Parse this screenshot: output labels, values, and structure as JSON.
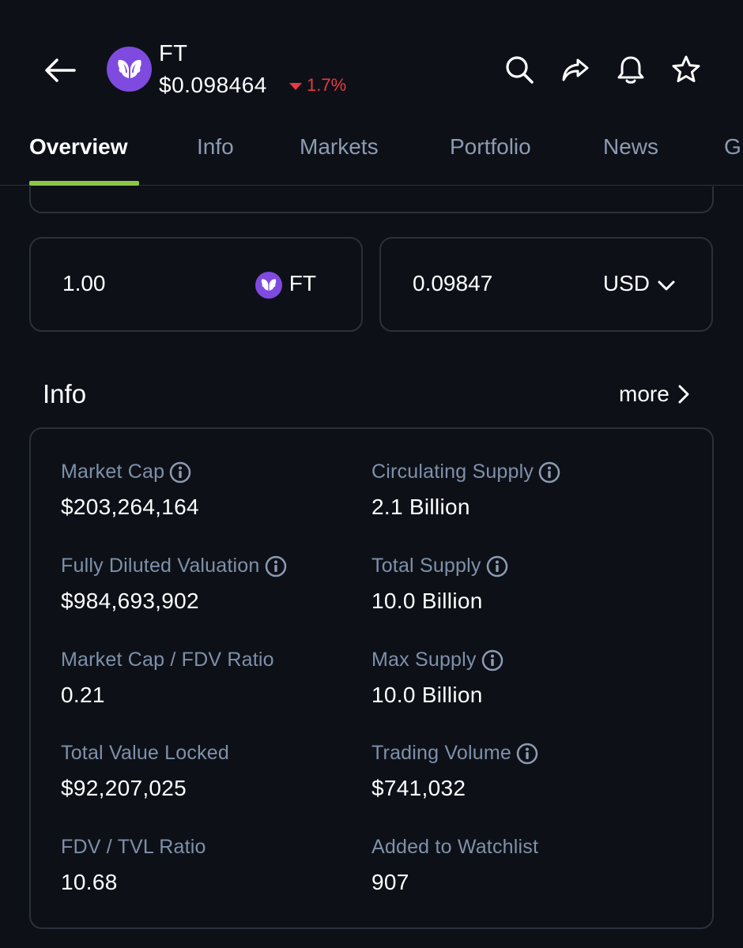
{
  "coin": {
    "symbol": "FT",
    "price": "$0.098464",
    "change": "1.7%",
    "change_direction": "down",
    "brand_color": "#7f4ae0",
    "down_color": "#ea3943"
  },
  "header": {
    "icons": [
      "back-arrow-icon",
      "search-icon",
      "share-icon",
      "bell-icon",
      "star-icon"
    ]
  },
  "tabs": [
    {
      "label": "Overview",
      "active": true
    },
    {
      "label": "Info",
      "active": false
    },
    {
      "label": "Markets",
      "active": false
    },
    {
      "label": "Portfolio",
      "active": false
    },
    {
      "label": "News",
      "active": false
    },
    {
      "label": "G",
      "active": false
    }
  ],
  "tab_accent": "#8dc647",
  "converter": {
    "from_amount": "1.00",
    "from_unit": "FT",
    "to_amount": "0.09847",
    "to_unit": "USD"
  },
  "info": {
    "title": "Info",
    "more_label": "more",
    "stats": [
      {
        "label": "Market Cap",
        "value": "$203,264,164",
        "has_info_icon": true
      },
      {
        "label": "Circulating Supply",
        "value": "2.1 Billion",
        "has_info_icon": true
      },
      {
        "label": "Fully Diluted Valuation",
        "value": "$984,693,902",
        "has_info_icon": true
      },
      {
        "label": "Total Supply",
        "value": "10.0 Billion",
        "has_info_icon": true
      },
      {
        "label": "Market Cap / FDV Ratio",
        "value": "0.21",
        "has_info_icon": false
      },
      {
        "label": "Max Supply",
        "value": "10.0 Billion",
        "has_info_icon": true
      },
      {
        "label": "Total Value Locked",
        "value": "$92,207,025",
        "has_info_icon": false
      },
      {
        "label": "Trading Volume",
        "value": "$741,032",
        "has_info_icon": true
      },
      {
        "label": "FDV / TVL Ratio",
        "value": "10.68",
        "has_info_icon": false
      },
      {
        "label": "Added to Watchlist",
        "value": "907",
        "has_info_icon": false
      }
    ]
  }
}
